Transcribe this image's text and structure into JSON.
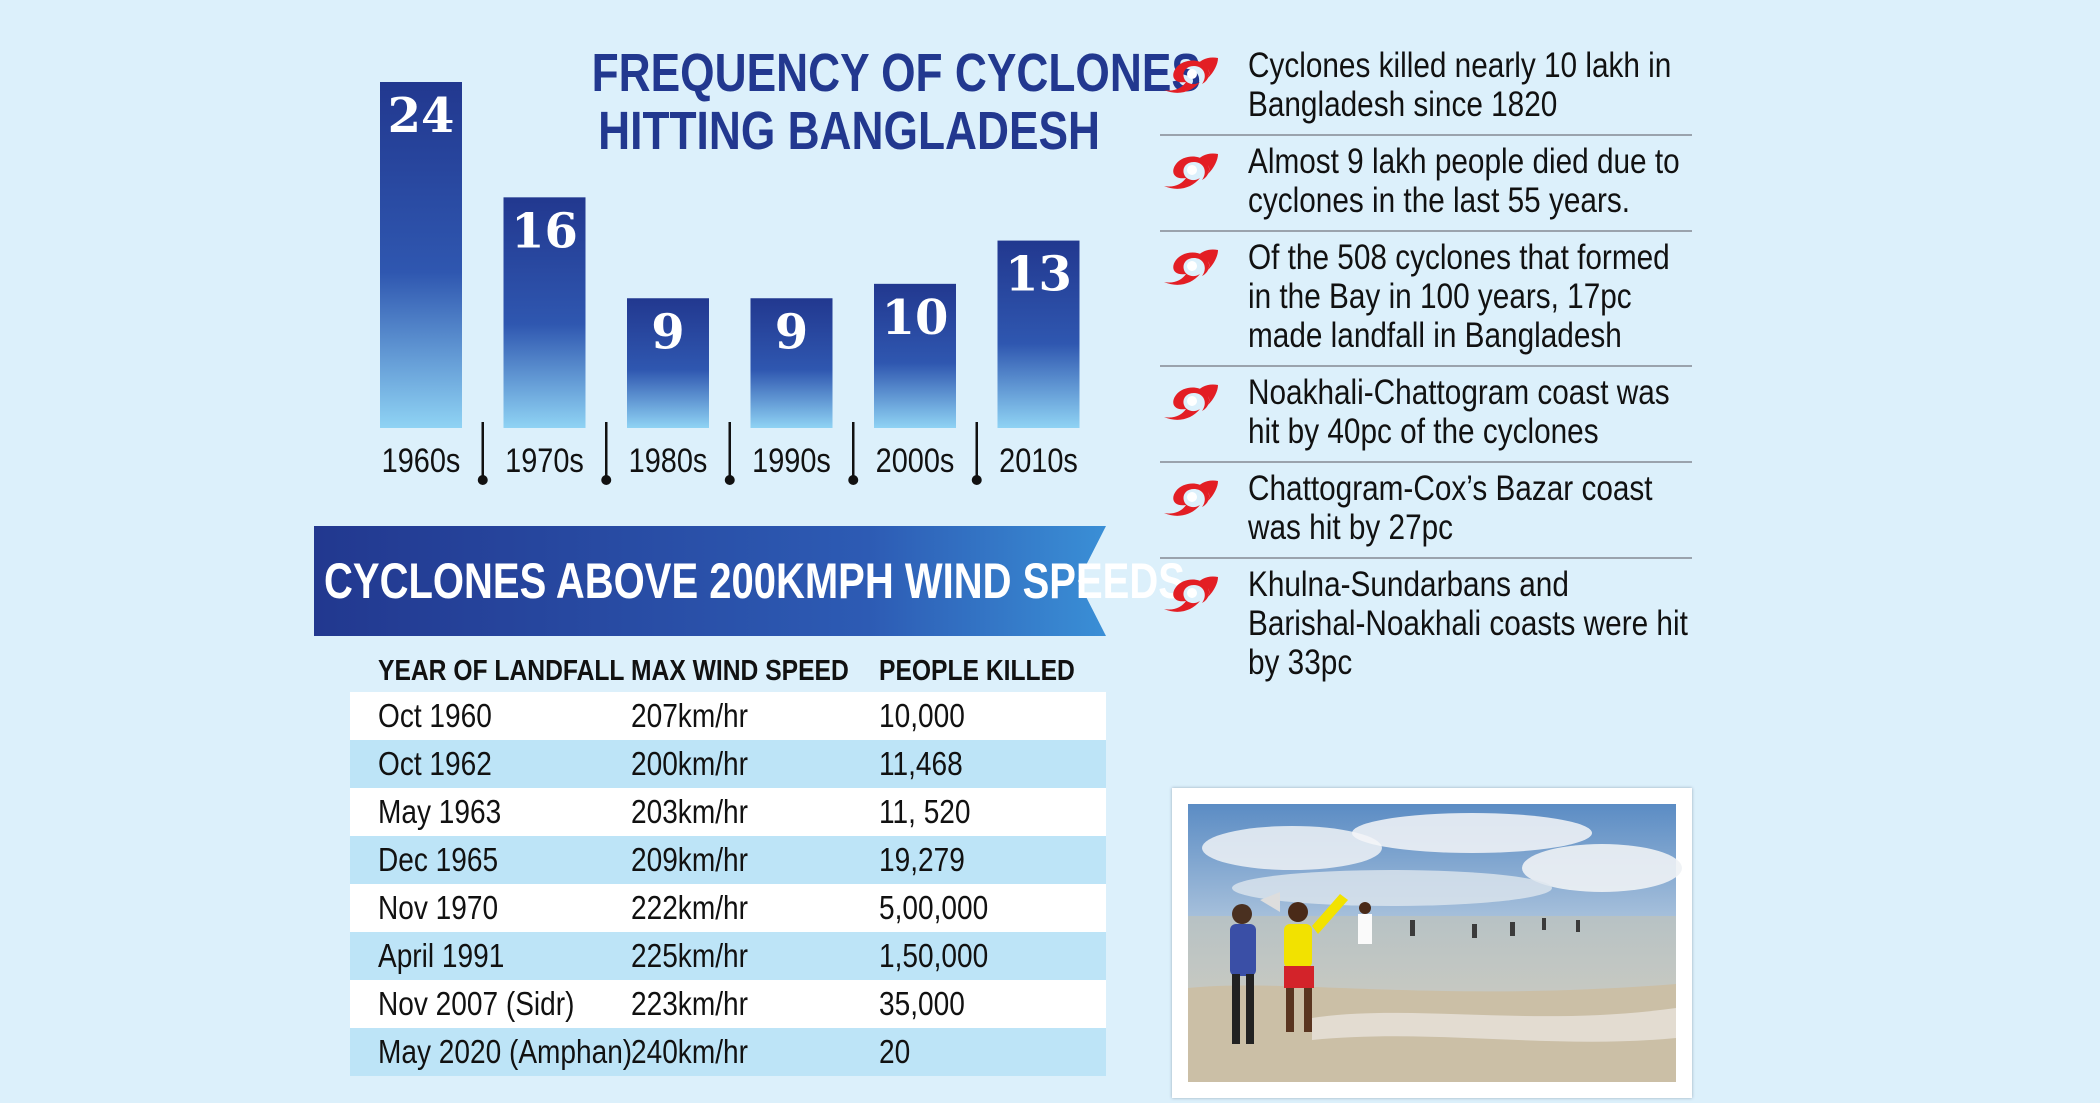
{
  "title": {
    "line1": "FREQUENCY OF CYCLONES",
    "line2": "HITTING BANGLADESH"
  },
  "chart_data": {
    "type": "bar",
    "title": "FREQUENCY OF CYCLONES HITTING BANGLADESH",
    "categories": [
      "1960s",
      "1970s",
      "1980s",
      "1990s",
      "2000s",
      "2010s"
    ],
    "values": [
      24,
      16,
      9,
      9,
      10,
      13
    ],
    "ylim": [
      0,
      24
    ],
    "grid": false,
    "legend": "none"
  },
  "bar_color_top": "#22388f",
  "bar_color_bottom": "#8fd3f4",
  "banner": {
    "text": "CYCLONES ABOVE 200KMPH WIND SPEEDS",
    "color": "#22388f"
  },
  "table": {
    "headers": [
      "YEAR OF LANDFALL",
      "MAX WIND SPEED",
      "PEOPLE KILLED"
    ],
    "rows": [
      [
        "Oct 1960",
        "207km/hr",
        "10,000"
      ],
      [
        "Oct 1962",
        "200km/hr",
        "11,468"
      ],
      [
        "May 1963",
        "203km/hr",
        "11, 520"
      ],
      [
        "Dec 1965",
        "209km/hr",
        "19,279"
      ],
      [
        "Nov 1970",
        "222km/hr",
        "5,00,000"
      ],
      [
        "April 1991",
        "225km/hr",
        "1,50,000"
      ],
      [
        "Nov 2007 (Sidr)",
        "223km/hr",
        "35,000"
      ],
      [
        "May 2020 (Amphan)",
        "240km/hr",
        "20"
      ]
    ]
  },
  "facts": [
    "Cyclones killed nearly 10 lakh in Bangladesh since 1820",
    "Almost 9 lakh people died due to cyclones in the last 55 years.",
    "Of the 508 cyclones that formed in the Bay in 100 years, 17pc made landfall in Bangladesh",
    "Noakhali-Chattogram coast was hit by 40pc of the cyclones",
    "Chattogram-Cox’s Bazar coast was hit by 27pc",
    "Khulna-Sundarbans and Barishal-Noakhali coasts were hit by 33pc"
  ],
  "fact_icon": "cyclone-icon",
  "accent_red": "#e31e24"
}
